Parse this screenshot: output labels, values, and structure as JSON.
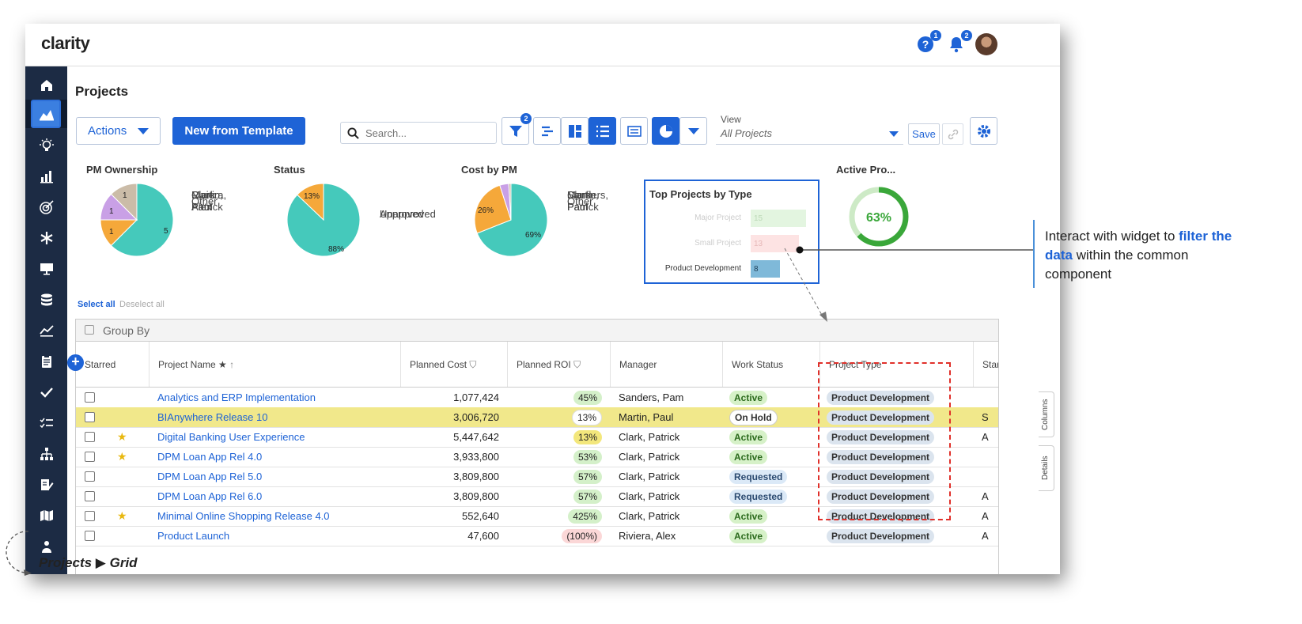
{
  "app": {
    "logo": "clarity",
    "help_badge": "1",
    "notif_badge": "2"
  },
  "page": {
    "title": "Projects"
  },
  "toolbar": {
    "actions_label": "Actions",
    "new_template_label": "New from Template",
    "search_placeholder": "Search...",
    "filter_badge": "2",
    "view_label": "View",
    "view_value": "All Projects",
    "save_label": "Save"
  },
  "widgets": {
    "pm_ownership": {
      "title": "PM Ownership",
      "legend": [
        "Clark, Patrick",
        "Martin, Paul",
        "Riviera, Alex",
        "Other"
      ],
      "labels": [
        "5",
        "1",
        "1",
        "1"
      ]
    },
    "status": {
      "title": "Status",
      "legend": [
        "Approved",
        "Unapproved"
      ],
      "labels": [
        "88%",
        "13%"
      ]
    },
    "cost_by_pm": {
      "title": "Cost by PM",
      "legend": [
        "Clark, Patrick",
        "Martin, Paul",
        "Sanders, Pam",
        "Other"
      ],
      "labels": [
        "69%",
        "26%"
      ]
    },
    "top_projects": {
      "title": "Top Projects by Type",
      "rows": [
        {
          "label": "Major Project",
          "value": "15"
        },
        {
          "label": "Small Project",
          "value": "13"
        },
        {
          "label": "Product Development",
          "value": "8"
        }
      ]
    },
    "active": {
      "title": "Active Pro...",
      "value": "63%"
    }
  },
  "chart_data": [
    {
      "type": "pie",
      "title": "PM Ownership",
      "categories": [
        "Clark, Patrick",
        "Martin, Paul",
        "Riviera, Alex",
        "Other"
      ],
      "values": [
        5,
        1,
        1,
        1
      ]
    },
    {
      "type": "pie",
      "title": "Status",
      "categories": [
        "Approved",
        "Unapproved"
      ],
      "values": [
        88,
        13
      ]
    },
    {
      "type": "pie",
      "title": "Cost by PM",
      "categories": [
        "Clark, Patrick",
        "Martin, Paul",
        "Sanders, Pam",
        "Other"
      ],
      "values": [
        69,
        26,
        4,
        1
      ]
    },
    {
      "type": "bar",
      "title": "Top Projects by Type",
      "categories": [
        "Major Project",
        "Small Project",
        "Product Development"
      ],
      "values": [
        15,
        13,
        8
      ]
    },
    {
      "type": "pie",
      "title": "Active Pro...",
      "categories": [
        "Active"
      ],
      "values": [
        63
      ]
    }
  ],
  "selection": {
    "select_all": "Select all",
    "deselect_all": "Deselect all"
  },
  "grid": {
    "group_by": "Group By",
    "columns": [
      "Starred",
      "Project Name",
      "Planned Cost",
      "Planned ROI",
      "Manager",
      "Work Status",
      "Project Type",
      "Star"
    ],
    "rows": [
      {
        "starred": false,
        "name": "Analytics and ERP Implementation",
        "cost": "1,077,424",
        "roi": "45%",
        "roi_style": "green",
        "manager": "Sanders, Pam",
        "status": "Active",
        "status_style": "active",
        "type": "Product Development",
        "extra": ""
      },
      {
        "starred": false,
        "name": "BIAnywhere Release 10",
        "cost": "3,006,720",
        "roi": "13%",
        "roi_style": "white",
        "manager": "Martin, Paul",
        "status": "On Hold",
        "status_style": "hold",
        "type": "Product Development",
        "extra": "S"
      },
      {
        "starred": true,
        "name": "Digital Banking User Experience",
        "cost": "5,447,642",
        "roi": "13%",
        "roi_style": "yellow",
        "manager": "Clark, Patrick",
        "status": "Active",
        "status_style": "active",
        "type": "Product Development",
        "extra": "A"
      },
      {
        "starred": true,
        "name": "DPM Loan App Rel 4.0",
        "cost": "3,933,800",
        "roi": "53%",
        "roi_style": "green",
        "manager": "Clark, Patrick",
        "status": "Active",
        "status_style": "active",
        "type": "Product Development",
        "extra": ""
      },
      {
        "starred": false,
        "name": "DPM Loan App Rel 5.0",
        "cost": "3,809,800",
        "roi": "57%",
        "roi_style": "green",
        "manager": "Clark, Patrick",
        "status": "Requested",
        "status_style": "req",
        "type": "Product Development",
        "extra": ""
      },
      {
        "starred": false,
        "name": "DPM Loan App Rel 6.0",
        "cost": "3,809,800",
        "roi": "57%",
        "roi_style": "green",
        "manager": "Clark, Patrick",
        "status": "Requested",
        "status_style": "req",
        "type": "Product Development",
        "extra": "A"
      },
      {
        "starred": true,
        "name": "Minimal Online Shopping Release 4.0",
        "cost": "552,640",
        "roi": "425%",
        "roi_style": "green",
        "manager": "Clark, Patrick",
        "status": "Active",
        "status_style": "active",
        "type": "Product Development",
        "extra": "A"
      },
      {
        "starred": false,
        "name": "Product Launch",
        "cost": "47,600",
        "roi": "(100%)",
        "roi_style": "red",
        "manager": "Riviera, Alex",
        "status": "Active",
        "status_style": "active",
        "type": "Product Development",
        "extra": "A"
      }
    ]
  },
  "side_tabs": {
    "columns": "Columns",
    "details": "Details"
  },
  "callout": {
    "pre": "Interact with widget to ",
    "highlight": "filter the data",
    "post": " within the common component"
  },
  "footer": {
    "label": "Projects ▶ Grid"
  },
  "colors": {
    "accent": "#1e63d6",
    "teal": "#45c9bb",
    "orange": "#f5a83a",
    "lilac": "#c9a0e6",
    "tan": "#cbbca8",
    "green": "#3aa73a"
  }
}
